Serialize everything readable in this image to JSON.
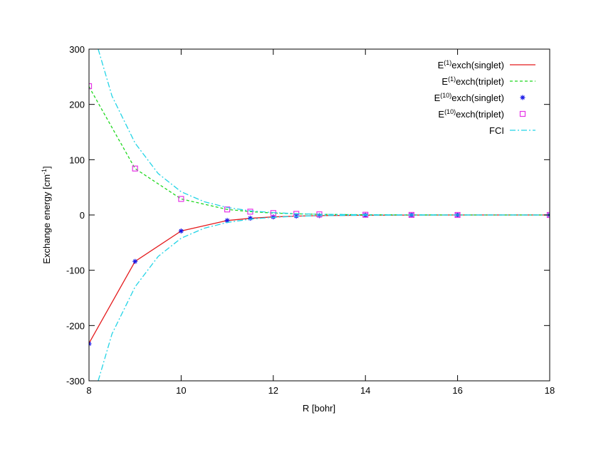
{
  "chart_data": {
    "type": "line",
    "xlabel": "R [bohr]",
    "ylabel": {
      "main": "Exchange energy [cm",
      "sup": "-1",
      "tail": "]"
    },
    "xlim": [
      8,
      18
    ],
    "ylim": [
      -300,
      300
    ],
    "x_ticks": [
      8,
      10,
      12,
      14,
      16,
      18
    ],
    "y_ticks": [
      -300,
      -200,
      -100,
      0,
      100,
      200,
      300
    ],
    "grid": false,
    "legend_position": "top-right",
    "series": [
      {
        "key": "e1-singlet",
        "legend": {
          "base": "E",
          "sup": "(1)",
          "tail": "exch(singlet)"
        },
        "color": "#e41a1c",
        "style": "solid",
        "marker": "none",
        "x": [
          8,
          9,
          10,
          11,
          11.5,
          12,
          12.5,
          13,
          14,
          15,
          16,
          18
        ],
        "y": [
          -232,
          -84,
          -29,
          -10,
          -6,
          -3.5,
          -2,
          -1.2,
          -0.4,
          -0.1,
          -0.03,
          0
        ]
      },
      {
        "key": "e1-triplet",
        "legend": {
          "base": "E",
          "sup": "(1)",
          "tail": "exch(triplet)"
        },
        "color": "#1fd81f",
        "style": "dashed",
        "marker": "none",
        "x": [
          8,
          9,
          10,
          11,
          11.5,
          12,
          12.5,
          13,
          14,
          15,
          16,
          18
        ],
        "y": [
          232,
          84,
          29,
          10,
          6,
          3.5,
          2,
          1.2,
          0.4,
          0.1,
          0.03,
          0
        ]
      },
      {
        "key": "e10-singlet",
        "legend": {
          "base": "E",
          "sup": "(10)",
          "tail": "exch(singlet)"
        },
        "color": "#1a1ae6",
        "style": "none",
        "marker": "asterisk",
        "x": [
          8,
          9,
          10,
          11,
          11.5,
          12,
          12.5,
          13,
          14,
          15,
          16,
          18
        ],
        "y": [
          -233,
          -84,
          -29,
          -10,
          -6,
          -3.5,
          -2,
          -1.2,
          -0.4,
          -0.1,
          -0.03,
          0
        ]
      },
      {
        "key": "e10-triplet",
        "legend": {
          "base": "E",
          "sup": "(10)",
          "tail": "exch(triplet)"
        },
        "color": "#e633e6",
        "style": "none",
        "marker": "square",
        "x": [
          8,
          9,
          10,
          11,
          11.5,
          12,
          12.5,
          13,
          14,
          15,
          16,
          18
        ],
        "y": [
          233,
          84,
          29,
          10,
          6,
          3.5,
          2,
          1.2,
          0.4,
          0.1,
          0.03,
          0
        ]
      },
      {
        "key": "fci-upper",
        "legend": {
          "base": "FCI",
          "sup": "",
          "tail": ""
        },
        "color": "#22d4e6",
        "style": "dashdot",
        "marker": "none",
        "x": [
          8.2,
          8.5,
          9,
          9.5,
          10,
          10.5,
          11,
          11.5,
          12,
          12.5,
          13,
          14,
          15,
          16,
          18
        ],
        "y": [
          300,
          215,
          130,
          75,
          42,
          24,
          13.5,
          7.5,
          4.2,
          2.3,
          1.3,
          0.4,
          0.12,
          0.04,
          0
        ]
      },
      {
        "key": "fci-lower",
        "color": "#22d4e6",
        "style": "dashdot",
        "marker": "none",
        "x": [
          8.2,
          8.5,
          9,
          9.5,
          10,
          10.5,
          11,
          11.5,
          12,
          12.5,
          13,
          14,
          15,
          16,
          18
        ],
        "y": [
          -300,
          -215,
          -130,
          -75,
          -42,
          -24,
          -13.5,
          -7.5,
          -4.2,
          -2.3,
          -1.3,
          -0.4,
          -0.12,
          -0.04,
          0
        ]
      }
    ]
  }
}
